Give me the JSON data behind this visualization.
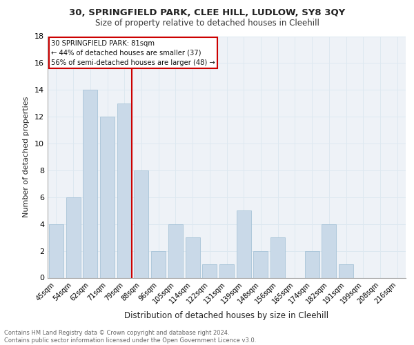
{
  "title1": "30, SPRINGFIELD PARK, CLEE HILL, LUDLOW, SY8 3QY",
  "title2": "Size of property relative to detached houses in Cleehill",
  "xlabel": "Distribution of detached houses by size in Cleehill",
  "ylabel": "Number of detached properties",
  "bins": [
    "45sqm",
    "54sqm",
    "62sqm",
    "71sqm",
    "79sqm",
    "88sqm",
    "96sqm",
    "105sqm",
    "114sqm",
    "122sqm",
    "131sqm",
    "139sqm",
    "148sqm",
    "156sqm",
    "165sqm",
    "174sqm",
    "182sqm",
    "191sqm",
    "199sqm",
    "208sqm",
    "216sqm"
  ],
  "values": [
    4,
    6,
    14,
    12,
    13,
    8,
    2,
    4,
    3,
    1,
    1,
    5,
    2,
    3,
    0,
    2,
    4,
    1,
    0,
    0,
    0
  ],
  "bar_color": "#c9d9e8",
  "bar_edge_color": "#a8c4d8",
  "grid_color": "#dde8f0",
  "bg_color": "#eef2f7",
  "subject_line_color": "#cc0000",
  "subject_bin_index": 4,
  "annotation_line1": "30 SPRINGFIELD PARK: 81sqm",
  "annotation_line2": "← 44% of detached houses are smaller (37)",
  "annotation_line3": "56% of semi-detached houses are larger (48) →",
  "annotation_box_color": "#cc0000",
  "ylim": [
    0,
    18
  ],
  "yticks": [
    0,
    2,
    4,
    6,
    8,
    10,
    12,
    14,
    16,
    18
  ],
  "footer_text1": "Contains HM Land Registry data © Crown copyright and database right 2024.",
  "footer_text2": "Contains public sector information licensed under the Open Government Licence v3.0."
}
